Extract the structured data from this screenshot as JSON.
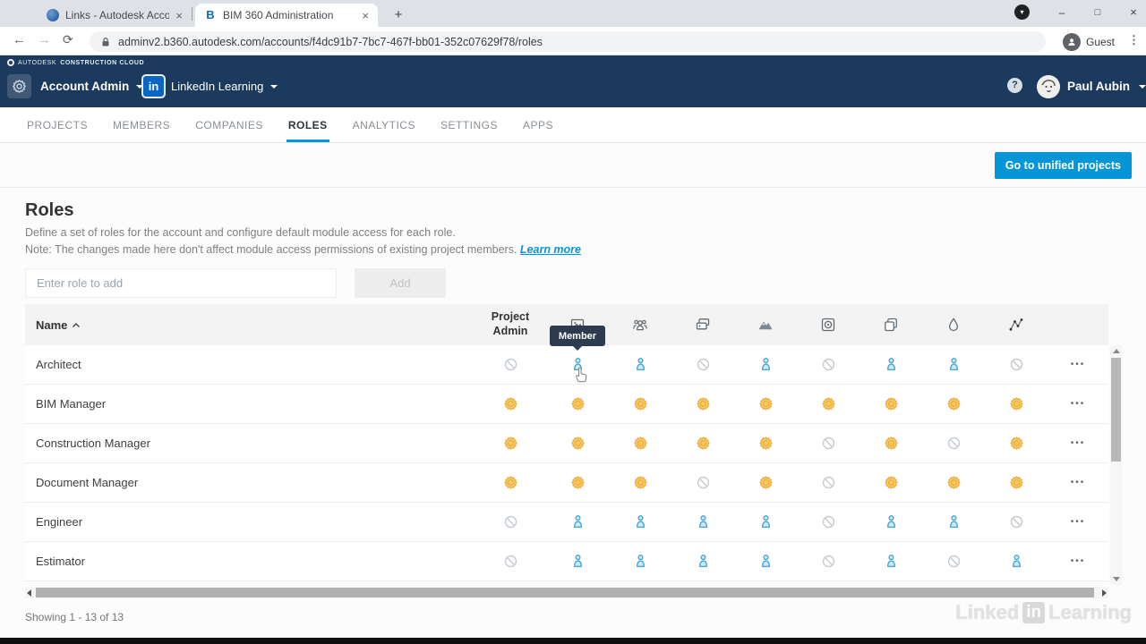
{
  "icons": {
    "close": "×",
    "plus": "+",
    "back": "←",
    "forward": "→",
    "reload": "⟳",
    "minimize": "–",
    "maximize": "□",
    "menu_dots": "⋮",
    "help": "?",
    "download": "▾",
    "ellipsis": "•••",
    "guest_person": "👤"
  },
  "browser": {
    "tab1_title": "Links - Autodesk Account Admin",
    "tab2_title": "BIM 360 Administration",
    "tab2_favicon_letter": "B",
    "url": "adminv2.b360.autodesk.com/accounts/f4dc91b7-7bc7-467f-bb01-352c07629f78/roles",
    "guest_label": "Guest"
  },
  "header": {
    "brand_word1": "AUTODESK",
    "brand_word2": "CONSTRUCTION CLOUD",
    "product": "Account Admin",
    "linkedin_glyph": "in",
    "org": "LinkedIn Learning",
    "user": "Paul Aubin"
  },
  "nav": {
    "tabs": [
      {
        "label": "PROJECTS",
        "active": false
      },
      {
        "label": "MEMBERS",
        "active": false
      },
      {
        "label": "COMPANIES",
        "active": false
      },
      {
        "label": "ROLES",
        "active": true
      },
      {
        "label": "ANALYTICS",
        "active": false
      },
      {
        "label": "SETTINGS",
        "active": false
      },
      {
        "label": "APPS",
        "active": false
      }
    ]
  },
  "page": {
    "unified_button": "Go to unified projects",
    "title": "Roles",
    "desc1": "Define a set of roles for the account and configure default module access for each role.",
    "desc2": "Note: The changes made here don't affect module access permissions of existing project members.",
    "learn_more": "Learn more",
    "input_placeholder": "Enter role to add",
    "add_button": "Add",
    "showing": "Showing 1 - 13 of 13"
  },
  "table": {
    "name_header": "Name",
    "project_admin_header": "Project Admin",
    "module_icons": [
      "photo-card",
      "team",
      "tags",
      "mountain",
      "disc",
      "pages",
      "droplet",
      "network"
    ],
    "tooltip": "Member",
    "access_legend": {
      "none": "no access",
      "member": "member",
      "admin": "admin"
    },
    "rows": [
      {
        "name": "Architect",
        "access": [
          "none",
          "member",
          "member",
          "none",
          "member",
          "none",
          "member",
          "member",
          "none"
        ]
      },
      {
        "name": "BIM Manager",
        "access": [
          "admin",
          "admin",
          "admin",
          "admin",
          "admin",
          "admin",
          "admin",
          "admin",
          "admin"
        ]
      },
      {
        "name": "Construction Manager",
        "access": [
          "admin",
          "admin",
          "admin",
          "admin",
          "admin",
          "none",
          "admin",
          "none",
          "admin"
        ]
      },
      {
        "name": "Document Manager",
        "access": [
          "admin",
          "admin",
          "admin",
          "none",
          "admin",
          "none",
          "admin",
          "admin",
          "admin"
        ]
      },
      {
        "name": "Engineer",
        "access": [
          "none",
          "member",
          "member",
          "member",
          "member",
          "none",
          "member",
          "member",
          "none"
        ]
      },
      {
        "name": "Estimator",
        "access": [
          "none",
          "member",
          "member",
          "member",
          "member",
          "none",
          "member",
          "none",
          "member"
        ]
      }
    ]
  },
  "watermark": {
    "linked": "Linked",
    "in": "in",
    "learning": "Learning"
  },
  "colors": {
    "accent_blue": "#0696d7",
    "header_navy": "#1c3a5e",
    "tooltip_navy": "#2c3b4d",
    "admin_orange": "#e9a12e",
    "admin_orange_fill": "#f9cb66",
    "member_blue": "#4aabdf",
    "member_blue_fill": "#cfe9f7",
    "none_gray": "#c6ccd2",
    "linkedin_blue": "#0a66c2"
  }
}
